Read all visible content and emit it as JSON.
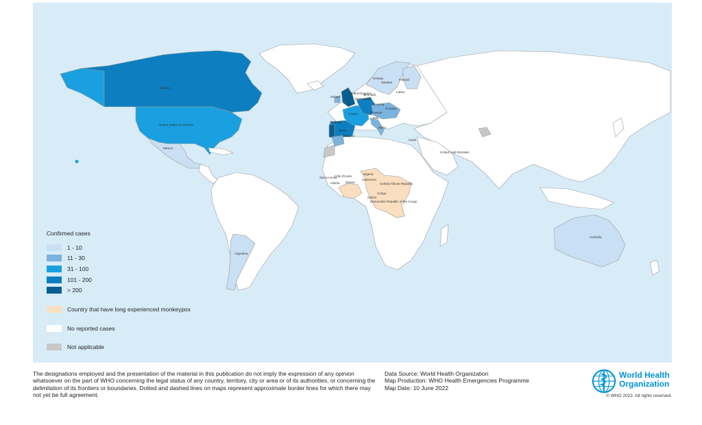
{
  "legend": {
    "title": "Confirmed cases",
    "items": [
      {
        "label": "1 - 10",
        "color": "#c9dff3"
      },
      {
        "label": "11 - 30",
        "color": "#7bb3df"
      },
      {
        "label": "31 - 100",
        "color": "#1aa0e0"
      },
      {
        "label": "101 - 200",
        "color": "#0d7fc0"
      },
      {
        "label": "> 200",
        "color": "#085f8f"
      },
      {
        "label": "Country that have long experienced monkeypox",
        "color": "#f9dfbf"
      },
      {
        "label": "No reported cases",
        "color": "#ffffff"
      },
      {
        "label": "Not applicable",
        "color": "#c8c8c8"
      }
    ]
  },
  "countries": {
    "canada": "Canada",
    "usa": "United States of America",
    "mexico": "Mexico",
    "argentina": "Argentina",
    "australia": "Australia",
    "norway": "Norway",
    "sweden": "Sweden",
    "finland": "Finland",
    "latvia": "Latvia",
    "denmark": "Denmark",
    "uk": "United Kingdom",
    "ireland": "Ireland",
    "netherlands": "Netherlands",
    "czechia": "Czechia",
    "france": "France",
    "hungary": "Hungary",
    "slovenia": "Slovenia",
    "portugal": "Portugal",
    "spain": "Spain",
    "italy": "Italy",
    "malta": "Malta",
    "morocco": "Morocco",
    "israel": "Israel",
    "uae": "United Arab Emirates",
    "nigeria": "Nigeria",
    "sierra_leone": "Sierra Leone",
    "liberia": "Liberia",
    "cote_divoire": "Côte d'Ivoire",
    "ghana": "Ghana",
    "cameroon": "Cameroon",
    "car": "Central African Republic",
    "congo": "Congo",
    "gabon": "Gabon",
    "drc": "Democratic Republic of the Congo"
  },
  "footer": {
    "disclaimer": "The designations employed and the presentation of the material in this publication do not imply the expression of any opinion whatsoever on the part of WHO concerning the legal status of any country, territory, city or area or of its authorities, or concerning the delimitation of its frontiers or boundaries. Dotted and dashed lines on maps represent approximate border lines for which there may not yet be full agreement.",
    "data_source": "Data Source: World Health Organization",
    "map_production": "Map Production: WHO Health Emergencies Programme",
    "map_date": "Map Date: 10 June 2022",
    "org_line1": "World Health",
    "org_line2": "Organization",
    "copyright": "© WHO 2022. All rights reserved."
  }
}
